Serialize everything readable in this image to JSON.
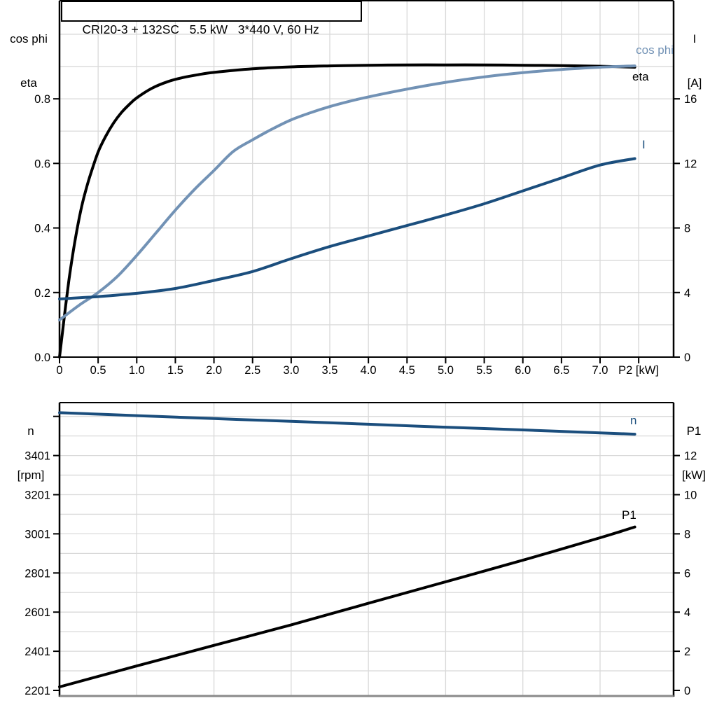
{
  "title_box": {
    "text": "CRI20-3 + 132SC   5.5 kW   3*440 V, 60 Hz"
  },
  "colors": {
    "curve_black": "#000000",
    "curve_light_blue": "#7292b5",
    "curve_dark_blue": "#1b4e7d",
    "gridline": "#d9d9d9",
    "bottom_frame_gray": "#8a8a8a"
  },
  "top_chart_labels": {
    "y_left_line1": "cos phi",
    "y_left_line2": "eta",
    "y_right_line1": "I",
    "y_right_line2": "[A]",
    "x_label": "P2 [kW]"
  },
  "bottom_chart_labels": {
    "y_left_line1": "n",
    "y_left_line2": "[rpm]",
    "y_right_line1": "P1",
    "y_right_line2": "[kW]"
  },
  "curve_labels": {
    "cos_phi": "cos phi",
    "eta": "eta",
    "current": "I",
    "speed": "n",
    "p1": "P1"
  },
  "chart_data": [
    {
      "type": "line",
      "title": "CRI20-3 + 132SC  5.5 kW  3*440 V, 60 Hz",
      "xlabel": "P2 [kW]",
      "x_range": [
        0,
        7.952
      ],
      "x_grid_step": 0.5,
      "x_ticks": [
        [
          0,
          "0"
        ],
        [
          0.5,
          "0.5"
        ],
        [
          1,
          "1.0"
        ],
        [
          1.5,
          "1.5"
        ],
        [
          2,
          "2.0"
        ],
        [
          2.5,
          "2.5"
        ],
        [
          3,
          "3.0"
        ],
        [
          3.5,
          "3.5"
        ],
        [
          4,
          "4.0"
        ],
        [
          4.5,
          "4.5"
        ],
        [
          5,
          "5.0"
        ],
        [
          5.5,
          "5.5"
        ],
        [
          6,
          "6.0"
        ],
        [
          6.5,
          "6.5"
        ],
        [
          7,
          "7.0"
        ],
        [
          7.5,
          ""
        ]
      ],
      "y_left": {
        "label": "cos phi / eta",
        "range": [
          0,
          1.104
        ],
        "grid_step": 0.1,
        "ticks": [
          [
            0,
            "0.0"
          ],
          [
            0.2,
            "0.2"
          ],
          [
            0.4,
            "0.4"
          ],
          [
            0.6,
            "0.6"
          ],
          [
            0.8,
            "0.8"
          ]
        ]
      },
      "y_right": {
        "label": "I [A]",
        "range": [
          0,
          22.08
        ],
        "ticks": [
          [
            0,
            "0"
          ],
          [
            4,
            "4"
          ],
          [
            8,
            "8"
          ],
          [
            12,
            "12"
          ],
          [
            16,
            "16"
          ]
        ]
      },
      "legend_position": "inline-right",
      "grid": true,
      "series": [
        {
          "name": "eta",
          "axis": "left",
          "color": "#000000",
          "points": [
            [
              0,
              0
            ],
            [
              0.04,
              0.08
            ],
            [
              0.08,
              0.16
            ],
            [
              0.12,
              0.235
            ],
            [
              0.16,
              0.3
            ],
            [
              0.2,
              0.36
            ],
            [
              0.25,
              0.425
            ],
            [
              0.3,
              0.48
            ],
            [
              0.35,
              0.525
            ],
            [
              0.4,
              0.565
            ],
            [
              0.5,
              0.635
            ],
            [
              0.6,
              0.685
            ],
            [
              0.7,
              0.725
            ],
            [
              0.8,
              0.757
            ],
            [
              0.9,
              0.782
            ],
            [
              1.0,
              0.803
            ],
            [
              1.2,
              0.833
            ],
            [
              1.4,
              0.853
            ],
            [
              1.6,
              0.866
            ],
            [
              1.8,
              0.875
            ],
            [
              2.0,
              0.882
            ],
            [
              2.5,
              0.893
            ],
            [
              3.0,
              0.899
            ],
            [
              3.5,
              0.902
            ],
            [
              4.0,
              0.904
            ],
            [
              4.5,
              0.905
            ],
            [
              5.0,
              0.905
            ],
            [
              5.5,
              0.905
            ],
            [
              6.0,
              0.904
            ],
            [
              6.5,
              0.903
            ],
            [
              7.0,
              0.901
            ],
            [
              7.45,
              0.898
            ]
          ]
        },
        {
          "name": "cos phi",
          "axis": "left",
          "color": "#7292b5",
          "points": [
            [
              0,
              0.115
            ],
            [
              0.25,
              0.16
            ],
            [
              0.5,
              0.2
            ],
            [
              0.75,
              0.25
            ],
            [
              1.0,
              0.315
            ],
            [
              1.25,
              0.385
            ],
            [
              1.5,
              0.455
            ],
            [
              1.75,
              0.52
            ],
            [
              2.0,
              0.578
            ],
            [
              2.25,
              0.637
            ],
            [
              2.5,
              0.673
            ],
            [
              2.75,
              0.706
            ],
            [
              3.0,
              0.735
            ],
            [
              3.25,
              0.757
            ],
            [
              3.5,
              0.776
            ],
            [
              3.75,
              0.792
            ],
            [
              4.0,
              0.806
            ],
            [
              4.5,
              0.83
            ],
            [
              5.0,
              0.851
            ],
            [
              5.5,
              0.868
            ],
            [
              6.0,
              0.881
            ],
            [
              6.5,
              0.891
            ],
            [
              7.0,
              0.898
            ],
            [
              7.45,
              0.902
            ]
          ]
        },
        {
          "name": "I",
          "axis": "right",
          "color": "#1b4e7d",
          "points": [
            [
              0,
              3.6
            ],
            [
              0.5,
              3.75
            ],
            [
              1.0,
              3.95
            ],
            [
              1.5,
              4.25
            ],
            [
              2.0,
              4.75
            ],
            [
              2.5,
              5.3
            ],
            [
              3.0,
              6.1
            ],
            [
              3.5,
              6.85
            ],
            [
              4.0,
              7.5
            ],
            [
              4.5,
              8.15
            ],
            [
              5.0,
              8.8
            ],
            [
              5.5,
              9.5
            ],
            [
              6.0,
              10.3
            ],
            [
              6.5,
              11.1
            ],
            [
              7.0,
              11.9
            ],
            [
              7.45,
              12.3
            ]
          ]
        }
      ]
    },
    {
      "type": "line",
      "title": "",
      "xlabel": "",
      "x_range": [
        0,
        7.952
      ],
      "x_grid_step": 1,
      "x_ticks": [],
      "y_left": {
        "label": "n [rpm]",
        "range": [
          2172.4,
          3671.5
        ],
        "grid_step": 100,
        "ticks": [
          [
            2201,
            "2201"
          ],
          [
            2401,
            "2401"
          ],
          [
            2601,
            "2601"
          ],
          [
            2801,
            "2801"
          ],
          [
            3001,
            "3001"
          ],
          [
            3201,
            "3201"
          ],
          [
            3401,
            "3401"
          ],
          [
            3601,
            ""
          ]
        ]
      },
      "y_right": {
        "label": "P1 [kW]",
        "range": [
          -0.286,
          14.705
        ],
        "ticks": [
          [
            0,
            "0"
          ],
          [
            2,
            "2"
          ],
          [
            4,
            "4"
          ],
          [
            6,
            "6"
          ],
          [
            8,
            "8"
          ],
          [
            10,
            "10"
          ],
          [
            12,
            "12"
          ]
        ]
      },
      "legend_position": "inline-right",
      "grid": true,
      "series": [
        {
          "name": "n",
          "axis": "left",
          "color": "#1b4e7d",
          "points": [
            [
              0,
              3620
            ],
            [
              1,
              3605
            ],
            [
              2,
              3590
            ],
            [
              3,
              3576
            ],
            [
              4,
              3561
            ],
            [
              5,
              3546
            ],
            [
              6,
              3532
            ],
            [
              7,
              3517
            ],
            [
              7.45,
              3510
            ]
          ]
        },
        {
          "name": "P1",
          "axis": "right",
          "color": "#000000",
          "points": [
            [
              0,
              0.18
            ],
            [
              1,
              1.25
            ],
            [
              2,
              2.3
            ],
            [
              3,
              3.35
            ],
            [
              4,
              4.45
            ],
            [
              5,
              5.55
            ],
            [
              6,
              6.65
            ],
            [
              7,
              7.8
            ],
            [
              7.45,
              8.35
            ]
          ]
        }
      ]
    }
  ]
}
